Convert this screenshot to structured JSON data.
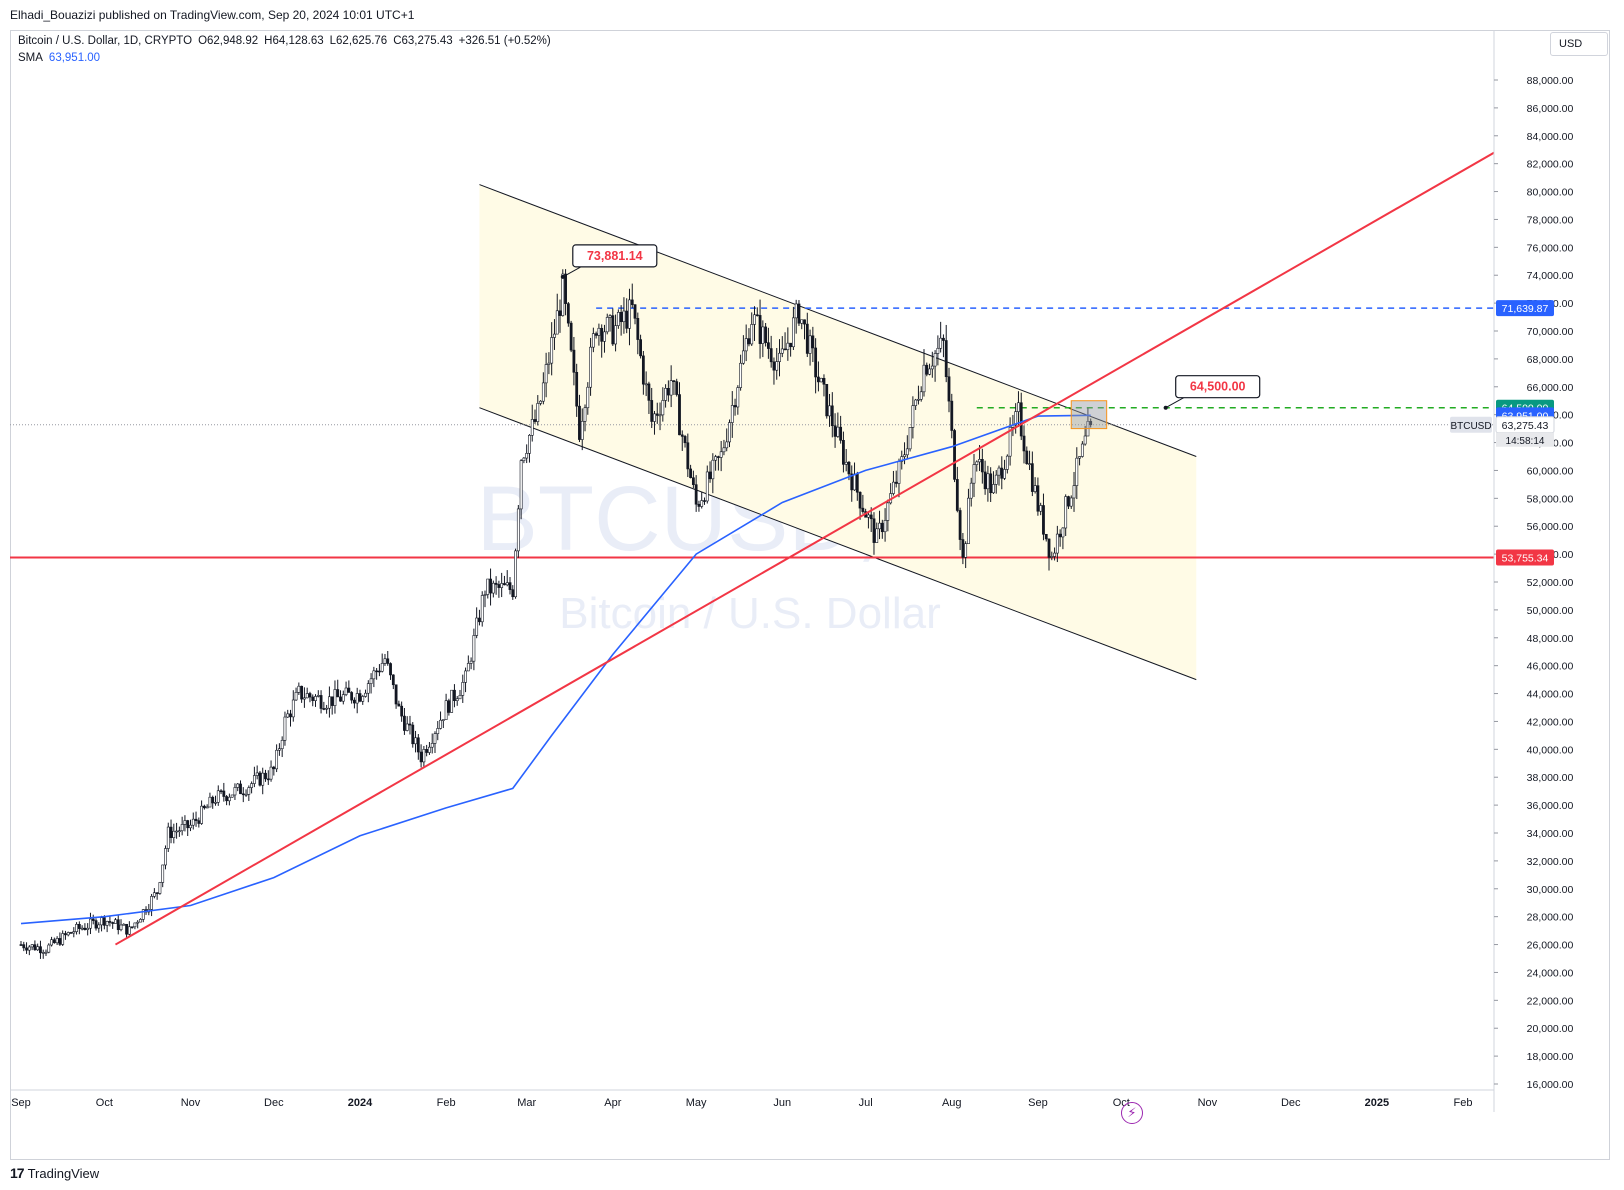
{
  "header": {
    "publish_line": "Elhadi_Bouazizi published on TradingView.com, Sep 20, 2024 10:01 UTC+1"
  },
  "legend": {
    "symbol": "Bitcoin / U.S. Dollar, 1D, CRYPTO",
    "open": "O62,948.92",
    "high": "H64,128.63",
    "low": "L62,625.76",
    "close": "C63,275.43",
    "change": "+326.51 (+0.52%)",
    "sma_label": "SMA",
    "sma_value": "63,951.00"
  },
  "watermark": {
    "ticker": "BTCUSD, 1D",
    "name": "Bitcoin / U.S. Dollar"
  },
  "currency_button": "USD",
  "footer": {
    "brand": "TradingView"
  },
  "colors": {
    "channel_fill": "#fffbe6",
    "trendline": "#f23645",
    "sma": "#2962ff",
    "resistance_dash": "#2962ff",
    "target_dash": "#089981",
    "candle": "#131722"
  },
  "chart_data": {
    "type": "candlestick",
    "symbol": "BTCUSD",
    "timeframe": "1D",
    "x_range": [
      "2023-09-01",
      "2025-02-28"
    ],
    "y_scale": "linear",
    "ylim": [
      16000,
      89000
    ],
    "grid": false,
    "y_ticks": [
      "88,000.00",
      "86,000.00",
      "84,000.00",
      "82,000.00",
      "80,000.00",
      "78,000.00",
      "76,000.00",
      "74,000.00",
      "72,000.00",
      "70,000.00",
      "68,000.00",
      "66,000.00",
      "64,000.00",
      "62,000.00",
      "60,000.00",
      "58,000.00",
      "56,000.00",
      "54,000.00",
      "52,000.00",
      "50,000.00",
      "48,000.00",
      "46,000.00",
      "44,000.00",
      "42,000.00",
      "40,000.00",
      "38,000.00",
      "36,000.00",
      "34,000.00",
      "32,000.00",
      "30,000.00",
      "28,000.00",
      "26,000.00",
      "24,000.00",
      "22,000.00",
      "20,000.00",
      "18,000.00",
      "16,000.00"
    ],
    "x_ticks": [
      {
        "label": "Sep",
        "date": "2023-09-01"
      },
      {
        "label": "Oct",
        "date": "2023-10-01"
      },
      {
        "label": "Nov",
        "date": "2023-11-01"
      },
      {
        "label": "Dec",
        "date": "2023-12-01"
      },
      {
        "label": "2024",
        "date": "2024-01-01"
      },
      {
        "label": "Feb",
        "date": "2024-02-01"
      },
      {
        "label": "Mar",
        "date": "2024-03-01"
      },
      {
        "label": "Apr",
        "date": "2024-04-01"
      },
      {
        "label": "May",
        "date": "2024-05-01"
      },
      {
        "label": "Jun",
        "date": "2024-06-01"
      },
      {
        "label": "Jul",
        "date": "2024-07-01"
      },
      {
        "label": "Aug",
        "date": "2024-08-01"
      },
      {
        "label": "Sep",
        "date": "2024-09-01"
      },
      {
        "label": "Oct",
        "date": "2024-10-01"
      },
      {
        "label": "Nov",
        "date": "2024-11-01"
      },
      {
        "label": "Dec",
        "date": "2024-12-01"
      },
      {
        "label": "2025",
        "date": "2025-01-01"
      },
      {
        "label": "Feb",
        "date": "2025-02-01"
      }
    ],
    "price_path": [
      [
        "2023-09-01",
        26000
      ],
      [
        "2023-09-10",
        25700
      ],
      [
        "2023-09-20",
        27000
      ],
      [
        "2023-10-01",
        27800
      ],
      [
        "2023-10-10",
        27000
      ],
      [
        "2023-10-20",
        29800
      ],
      [
        "2023-10-24",
        34000
      ],
      [
        "2023-11-01",
        34500
      ],
      [
        "2023-11-10",
        36500
      ],
      [
        "2023-11-20",
        37200
      ],
      [
        "2023-12-01",
        38500
      ],
      [
        "2023-12-05",
        42000
      ],
      [
        "2023-12-10",
        44000
      ],
      [
        "2023-12-20",
        43500
      ],
      [
        "2024-01-01",
        44000
      ],
      [
        "2024-01-10",
        46500
      ],
      [
        "2024-01-15",
        42800
      ],
      [
        "2024-01-23",
        39500
      ],
      [
        "2024-02-01",
        43000
      ],
      [
        "2024-02-08",
        45000
      ],
      [
        "2024-02-15",
        51500
      ],
      [
        "2024-02-25",
        51500
      ],
      [
        "2024-02-28",
        61000
      ],
      [
        "2024-03-05",
        64000
      ],
      [
        "2024-03-14",
        73000
      ],
      [
        "2024-03-20",
        63000
      ],
      [
        "2024-03-26",
        70500
      ],
      [
        "2024-04-01",
        70000
      ],
      [
        "2024-04-08",
        71500
      ],
      [
        "2024-04-15",
        63500
      ],
      [
        "2024-04-22",
        66500
      ],
      [
        "2024-05-01",
        57500
      ],
      [
        "2024-05-10",
        61000
      ],
      [
        "2024-05-21",
        71000
      ],
      [
        "2024-05-31",
        67500
      ],
      [
        "2024-06-07",
        71500
      ],
      [
        "2024-06-14",
        66500
      ],
      [
        "2024-06-24",
        60500
      ],
      [
        "2024-07-05",
        55000
      ],
      [
        "2024-07-14",
        60500
      ],
      [
        "2024-07-22",
        67500
      ],
      [
        "2024-07-29",
        69000
      ],
      [
        "2024-08-05",
        53500
      ],
      [
        "2024-08-09",
        61000
      ],
      [
        "2024-08-16",
        58500
      ],
      [
        "2024-08-25",
        64000
      ],
      [
        "2024-09-01",
        57500
      ],
      [
        "2024-09-06",
        53800
      ],
      [
        "2024-09-12",
        58000
      ],
      [
        "2024-09-20",
        63275
      ]
    ],
    "series": [
      {
        "name": "SMA",
        "points": [
          [
            "2023-09-01",
            27500
          ],
          [
            "2023-10-01",
            28000
          ],
          [
            "2023-11-01",
            28800
          ],
          [
            "2023-12-01",
            30800
          ],
          [
            "2024-01-01",
            33800
          ],
          [
            "2024-02-01",
            35800
          ],
          [
            "2024-02-25",
            37200
          ],
          [
            "2024-03-10",
            41000
          ],
          [
            "2024-04-01",
            46800
          ],
          [
            "2024-05-01",
            54000
          ],
          [
            "2024-06-01",
            57700
          ],
          [
            "2024-07-01",
            60000
          ],
          [
            "2024-08-01",
            61700
          ],
          [
            "2024-09-01",
            63900
          ],
          [
            "2024-09-20",
            63951
          ]
        ]
      }
    ],
    "drawings": {
      "channel": {
        "upper": [
          [
            "2024-02-13",
            80500
          ],
          [
            "2024-10-28",
            61000
          ]
        ],
        "lower": [
          [
            "2024-02-13",
            64500
          ],
          [
            "2024-10-28",
            45000
          ]
        ],
        "fill_to": "2024-10-28"
      },
      "ascending_trendline": [
        [
          "2023-10-05",
          26000
        ],
        [
          "2025-02-28",
          84600
        ]
      ],
      "support_line": 53755.34,
      "resistance_line": {
        "price": 71639.87,
        "from": "2024-03-26"
      },
      "target_line": {
        "price": 64500.0,
        "from": "2024-08-10"
      },
      "target_box": {
        "from": "2024-09-13",
        "to": "2024-09-20",
        "low": 63000,
        "high": 65000
      }
    },
    "callouts": [
      {
        "text": "73,881.14",
        "date": "2024-03-14",
        "price": 73881.14
      },
      {
        "text": "64,500.00",
        "date": "2024-10-17",
        "price": 64500.0
      }
    ],
    "last_price_line": 63275.43,
    "price_labels": [
      {
        "text": "71,639.87",
        "value": 71639.87,
        "bg": "#2962ff",
        "fg": "#ffffff"
      },
      {
        "text": "64,500.00",
        "value": 64500.0,
        "bg": "#089981",
        "fg": "#ffffff"
      },
      {
        "text": "63,951.00",
        "value": 63951.0,
        "bg": "#2962ff",
        "fg": "#ffffff"
      },
      {
        "text": "63,275.43",
        "value": 63275.43,
        "bg": "#ffffff",
        "fg": "#131722",
        "name": "BTCUSD",
        "countdown": "14:58:14"
      },
      {
        "text": "53,755.34",
        "value": 53755.34,
        "bg": "#f23645",
        "fg": "#ffffff"
      }
    ]
  }
}
